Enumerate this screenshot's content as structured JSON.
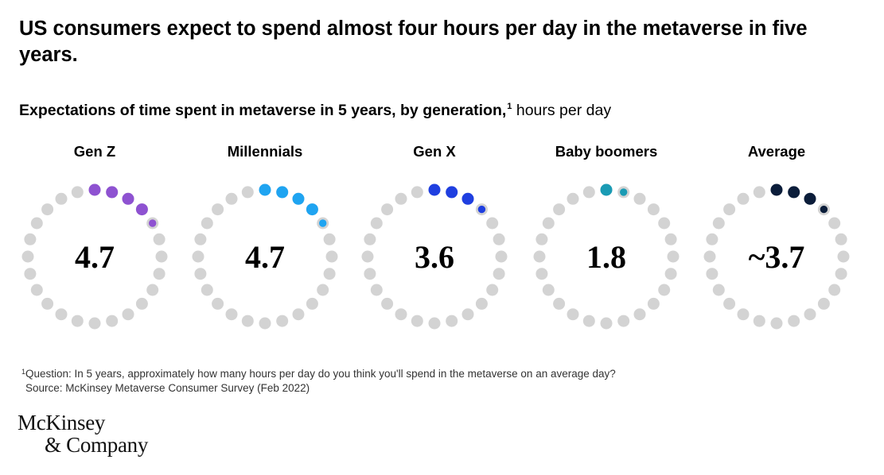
{
  "headline": "US consumers expect to spend almost four hours per day in the metaverse in five years.",
  "subtitle": {
    "text": "Expectations of time spent in metaverse in 5 years, by generation,",
    "footnote_mark": "1",
    "unit": "hours per day"
  },
  "chart_data": {
    "type": "dot-ring",
    "title": "Expectations of time spent in metaverse in 5 years, by generation, hours per day",
    "dots_per_ring": 24,
    "dots_per_hour": 1,
    "empty_color": "#d3d3d3",
    "series": [
      {
        "name": "Gen Z",
        "value": 4.7,
        "label": "4.7",
        "color": "#8e52d1"
      },
      {
        "name": "Millennials",
        "value": 4.7,
        "label": "4.7",
        "color": "#1fa4f1"
      },
      {
        "name": "Gen X",
        "value": 3.6,
        "label": "3.6",
        "color": "#1f3fe0"
      },
      {
        "name": "Baby boomers",
        "value": 1.8,
        "label": "1.8",
        "color": "#1a9bb4"
      },
      {
        "name": "Average",
        "value": 3.7,
        "label": "~3.7",
        "color": "#0b1d3a"
      }
    ]
  },
  "footnote": {
    "mark": "1",
    "question": "Question: In 5 years, approximately how many hours per day do you think you'll spend in the metaverse on an average day?",
    "source": "Source: McKinsey Metaverse Consumer Survey (Feb 2022)"
  },
  "logo": {
    "line1": "McKinsey",
    "line2": "& Company"
  }
}
